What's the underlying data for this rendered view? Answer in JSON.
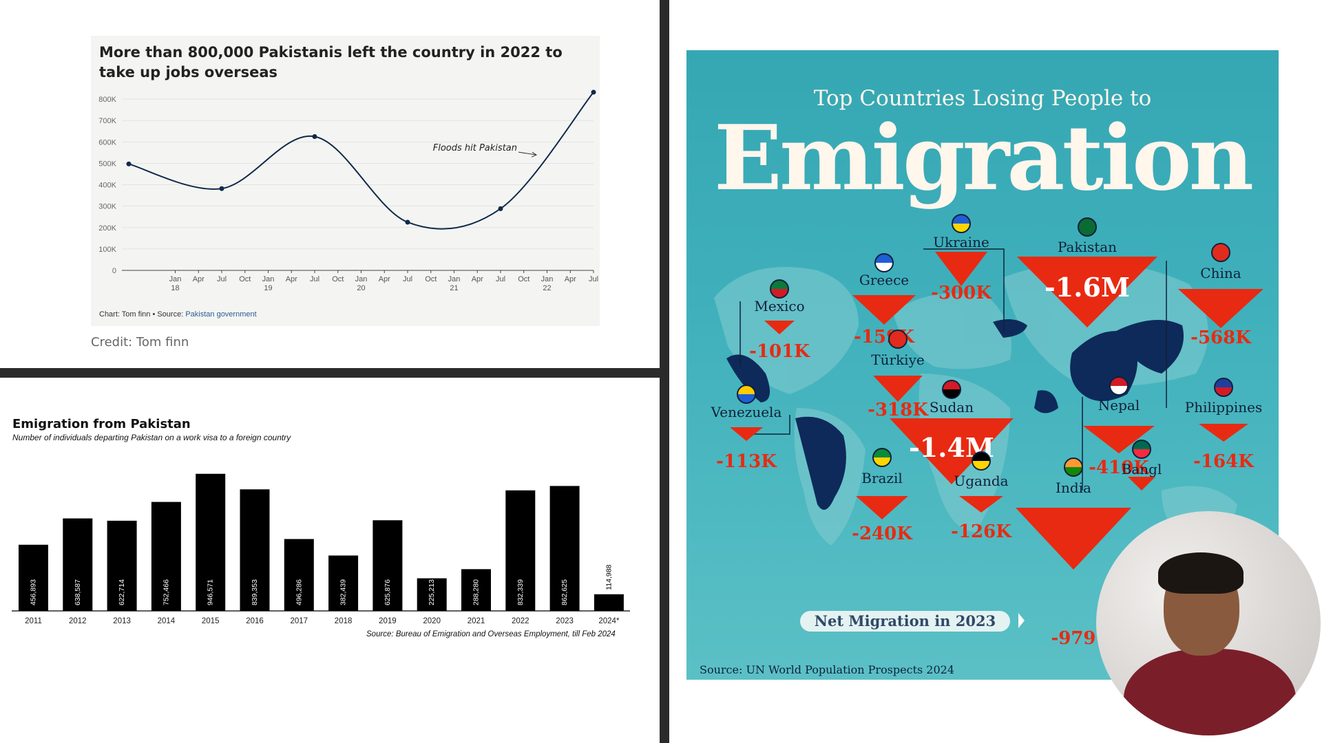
{
  "line_chart": {
    "title": "More than 800,000 Pakistanis left the country in 2022 to take up jobs overseas",
    "annotation": "Floods hit Pakistan",
    "footer_prefix": "Chart: Tom finn • Source: ",
    "footer_link": "Pakistan government",
    "credit": "Credit: Tom finn"
  },
  "bar_chart": {
    "title": "Emigration from Pakistan",
    "subtitle": "Number of individuals departing Pakistan on a work visa to a foreign country",
    "source": "Source: Bureau of Emigration and Overseas Employment, till Feb 2024"
  },
  "infographic": {
    "subtitle": "Top Countries Losing People to",
    "title": "Emigration",
    "net_label": "Net Migration in 2023",
    "source": "Source: UN World Population Prospects 2024",
    "colors": {
      "bg": "#3fb0bb",
      "arrow": "#e82a12",
      "land": "#0e2a5a",
      "text": "#10203a"
    },
    "countries": [
      {
        "name": "Ukraine",
        "value": "-300K"
      },
      {
        "name": "Pakistan",
        "value": "-1.6M"
      },
      {
        "name": "China",
        "value": "-568K"
      },
      {
        "name": "Greece",
        "value": "-159K"
      },
      {
        "name": "Mexico",
        "value": "-101K"
      },
      {
        "name": "Türkiye",
        "value": "-318K"
      },
      {
        "name": "Sudan",
        "value": "-1.4M"
      },
      {
        "name": "Venezuela",
        "value": "-113K"
      },
      {
        "name": "Nepal",
        "value": "-410K"
      },
      {
        "name": "Philippines",
        "value": "-164K"
      },
      {
        "name": "Brazil",
        "value": "-240K"
      },
      {
        "name": "Uganda",
        "value": "-126K"
      },
      {
        "name": "India",
        "value": "-979"
      },
      {
        "name": "Bangl",
        "value": ""
      }
    ]
  },
  "chart_data": [
    {
      "type": "line",
      "title": "More than 800,000 Pakistanis left the country in 2022 to take up jobs overseas",
      "yticks": [
        "0",
        "100K",
        "200K",
        "300K",
        "400K",
        "500K",
        "600K",
        "700K",
        "800K"
      ],
      "ylim": [
        0,
        800000
      ],
      "xticks": [
        {
          "top": "Jan",
          "bottom": "18"
        },
        {
          "top": "Apr",
          "bottom": ""
        },
        {
          "top": "Jul",
          "bottom": ""
        },
        {
          "top": "Oct",
          "bottom": ""
        },
        {
          "top": "Jan",
          "bottom": "19"
        },
        {
          "top": "Apr",
          "bottom": ""
        },
        {
          "top": "Jul",
          "bottom": ""
        },
        {
          "top": "Oct",
          "bottom": ""
        },
        {
          "top": "Jan",
          "bottom": "20"
        },
        {
          "top": "Apr",
          "bottom": ""
        },
        {
          "top": "Jul",
          "bottom": ""
        },
        {
          "top": "Oct",
          "bottom": ""
        },
        {
          "top": "Jan",
          "bottom": "21"
        },
        {
          "top": "Apr",
          "bottom": ""
        },
        {
          "top": "Jul",
          "bottom": ""
        },
        {
          "top": "Oct",
          "bottom": ""
        },
        {
          "top": "Jan",
          "bottom": "22"
        },
        {
          "top": "Apr",
          "bottom": ""
        },
        {
          "top": "Jul",
          "bottom": ""
        },
        {
          "top": "Oct",
          "bottom": ""
        }
      ],
      "x": [
        "2017-07",
        "2018-07",
        "2019-07",
        "2020-07",
        "2021-07",
        "2022-07"
      ],
      "values": [
        497000,
        382000,
        625000,
        225000,
        288000,
        832000
      ],
      "grid": true,
      "line_color": "#0f2a47"
    },
    {
      "type": "bar",
      "title": "Emigration from Pakistan",
      "subtitle": "Number of individuals departing Pakistan on a work visa to a foreign country",
      "categories": [
        "2011",
        "2012",
        "2013",
        "2014",
        "2015",
        "2016",
        "2017",
        "2018",
        "2019",
        "2020",
        "2021",
        "2022",
        "2023",
        "2024*"
      ],
      "values": [
        456893,
        638587,
        622714,
        752466,
        946571,
        839353,
        496286,
        382439,
        625876,
        225213,
        288280,
        832339,
        862625,
        114988
      ],
      "labels": [
        "456,893",
        "638,587",
        "622,714",
        "752,466",
        "946,571",
        "839,353",
        "496,286",
        "382,439",
        "625,876",
        "225,213",
        "288,280",
        "832,339",
        "862,625",
        "114,988"
      ],
      "bar_color": "#000000"
    }
  ]
}
